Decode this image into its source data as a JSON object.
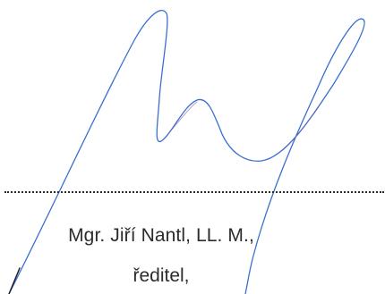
{
  "signatory": {
    "name": "Mgr. Jiří Nantl, LL. M.,",
    "role": "ředitel,"
  },
  "colors": {
    "ink": "#3a6fd0",
    "text": "#2c2c2c"
  }
}
